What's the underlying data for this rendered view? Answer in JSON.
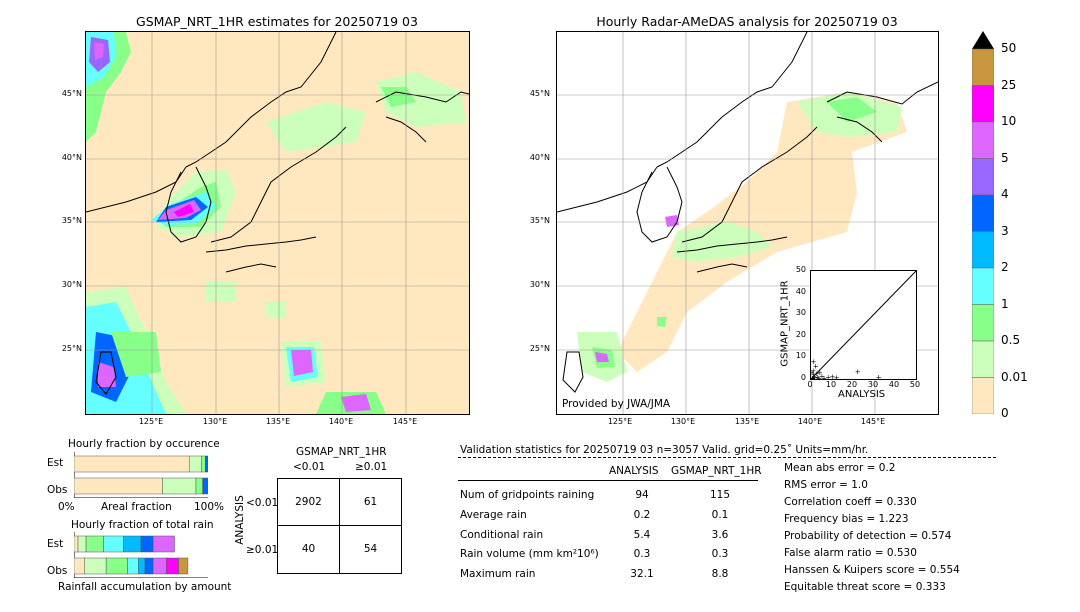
{
  "left_panel": {
    "title": "GSMAP_NRT_1HR estimates for 20250719 03",
    "lat_labels": [
      "45°N",
      "40°N",
      "35°N",
      "30°N",
      "25°N"
    ],
    "lon_labels": [
      "125°E",
      "130°E",
      "135°E",
      "140°E",
      "145°E"
    ]
  },
  "right_panel": {
    "title": "Hourly Radar-AMeDAS analysis for 20250719 03",
    "lat_labels": [
      "45°N",
      "40°N",
      "35°N",
      "30°N",
      "25°N"
    ],
    "lon_labels": [
      "125°E",
      "130°E",
      "135°E",
      "140°E",
      "145°E"
    ],
    "credit": "Provided by JWA/JMA"
  },
  "colorbar": {
    "ticks": [
      "50",
      "25",
      "10",
      "5",
      "4",
      "3",
      "2",
      "1",
      "0.5",
      "0.01",
      "0"
    ],
    "colors": [
      "#c8963c",
      "#ff00ff",
      "#dd66ff",
      "#9966ff",
      "#0066ff",
      "#00bbff",
      "#66ffff",
      "#88ff88",
      "#ccffbb",
      "#ffe8c0"
    ]
  },
  "inset_scatter": {
    "ylabel": "GSMAP_NRT_1HR",
    "xlabel": "ANALYSIS",
    "ticks": [
      "0",
      "10",
      "20",
      "30",
      "40",
      "50"
    ]
  },
  "fraction_occurrence": {
    "title": "Hourly fraction by occurence",
    "rows": [
      "Est",
      "Obs"
    ],
    "axis_left": "0%",
    "axis_mid": "Areal fraction",
    "axis_right": "100%"
  },
  "fraction_total": {
    "title": "Hourly fraction of total rain",
    "rows": [
      "Est",
      "Obs"
    ],
    "axis_label": "Rainfall accumulation by amount"
  },
  "contingency": {
    "title": "GSMAP_NRT_1HR",
    "col_labels": [
      "<0.01",
      "≥0.01"
    ],
    "side_label": "ANALYSIS",
    "row_labels": [
      "<0.01",
      "≥0.01"
    ],
    "cells": [
      [
        "2902",
        "61"
      ],
      [
        "40",
        "54"
      ]
    ]
  },
  "validation": {
    "header": "Validation statistics for 20250719 03  n=3057 Valid. grid=0.25˚ Units=mm/hr.",
    "col_analysis": "ANALYSIS",
    "col_gsmap": "GSMAP_NRT_1HR",
    "rows": [
      {
        "label": "Num of gridpoints raining",
        "analysis": "94",
        "gsmap": "115"
      },
      {
        "label": "Average rain",
        "analysis": "0.2",
        "gsmap": "0.1"
      },
      {
        "label": "Conditional rain",
        "analysis": "5.4",
        "gsmap": "3.6"
      },
      {
        "label": "Rain volume (mm km²10⁶)",
        "analysis": "0.3",
        "gsmap": "0.3"
      },
      {
        "label": "Maximum rain",
        "analysis": "32.1",
        "gsmap": "8.8"
      }
    ],
    "scores": [
      "Mean abs error =    0.2",
      "RMS error =    1.0",
      "Correlation coeff =  0.330",
      "Frequency bias =  1.223",
      "Probability of detection =  0.574",
      "False alarm ratio =  0.530",
      "Hanssen & Kuipers score =  0.554",
      "Equitable threat score =  0.333"
    ]
  },
  "chart_data": [
    {
      "type": "heatmap",
      "title": "GSMAP_NRT_1HR estimates for 20250719 03",
      "x_ticks": [
        "125°E",
        "130°E",
        "135°E",
        "140°E",
        "145°E"
      ],
      "y_ticks": [
        "45°N",
        "40°N",
        "35°N",
        "30°N",
        "25°N"
      ]
    },
    {
      "type": "heatmap",
      "title": "Hourly Radar-AMeDAS analysis for 20250719 03",
      "x_ticks": [
        "125°E",
        "130°E",
        "135°E",
        "140°E",
        "145°E"
      ],
      "y_ticks": [
        "45°N",
        "40°N",
        "35°N",
        "30°N",
        "25°N"
      ]
    },
    {
      "type": "scatter",
      "xlabel": "ANALYSIS",
      "ylabel": "GSMAP_NRT_1HR",
      "xlim": [
        0,
        50
      ],
      "ylim": [
        0,
        50
      ],
      "points": [
        [
          0.5,
          0.5
        ],
        [
          1,
          2
        ],
        [
          1.5,
          0.8
        ],
        [
          2,
          6
        ],
        [
          0.8,
          4
        ],
        [
          3,
          1
        ],
        [
          2.5,
          2.5
        ],
        [
          1,
          8
        ],
        [
          0.3,
          3
        ],
        [
          5,
          1.5
        ],
        [
          8,
          1
        ],
        [
          10,
          1.2
        ],
        [
          12,
          0.6
        ],
        [
          22,
          3.5
        ],
        [
          32,
          1
        ],
        [
          4,
          3
        ],
        [
          6,
          0.4
        ],
        [
          1.2,
          1.2
        ],
        [
          0.6,
          0.2
        ],
        [
          3.5,
          0.5
        ]
      ]
    },
    {
      "type": "bar",
      "title": "Hourly fraction by occurence",
      "categories": [
        "Est",
        "Obs"
      ],
      "series": [
        {
          "values": [
            0.86,
            0.66
          ]
        },
        {
          "values": [
            0.09,
            0.25
          ]
        },
        {
          "values": [
            0.03,
            0.05
          ]
        },
        {
          "values": [
            0.02,
            0.04
          ]
        }
      ]
    },
    {
      "type": "bar",
      "title": "Hourly fraction of total rain",
      "categories": [
        "Est",
        "Obs"
      ],
      "series": [
        {
          "values": [
            0.03,
            0.08
          ]
        },
        {
          "values": [
            0.06,
            0.16
          ]
        },
        {
          "values": [
            0.13,
            0.16
          ]
        },
        {
          "values": [
            0.15,
            0.08
          ]
        },
        {
          "values": [
            0.13,
            0.05
          ]
        },
        {
          "values": [
            0.09,
            0.06
          ]
        },
        {
          "values": [
            0.16,
            0.1
          ]
        },
        {
          "values": [
            0.0,
            0.09
          ]
        },
        {
          "values": [
            0.0,
            0.07
          ]
        }
      ]
    },
    {
      "type": "table",
      "columns": [
        "<0.01",
        "≥0.01"
      ],
      "rows": [
        "<0.01",
        "≥0.01"
      ],
      "values": [
        [
          2902,
          61
        ],
        [
          40,
          54
        ]
      ]
    }
  ]
}
